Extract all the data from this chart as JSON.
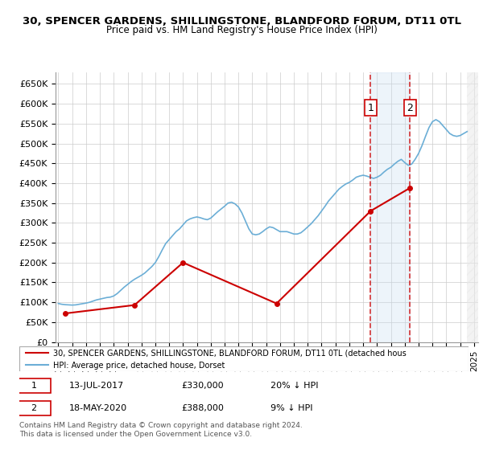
{
  "title1": "30, SPENCER GARDENS, SHILLINGSTONE, BLANDFORD FORUM, DT11 0TL",
  "title2": "Price paid vs. HM Land Registry's House Price Index (HPI)",
  "legend_line1": "30, SPENCER GARDENS, SHILLINGSTONE, BLANDFORD FORUM, DT11 0TL (detached hous",
  "legend_line2": "HPI: Average price, detached house, Dorset",
  "footnote": "Contains HM Land Registry data © Crown copyright and database right 2024.\nThis data is licensed under the Open Government Licence v3.0.",
  "annotation1": {
    "label": "1",
    "date": "13-JUL-2017",
    "price": 330000,
    "pct": "20% ↓ HPI"
  },
  "annotation2": {
    "label": "2",
    "date": "18-MAY-2020",
    "price": 388000,
    "pct": "9% ↓ HPI"
  },
  "ylim": [
    0,
    680000
  ],
  "yticks": [
    0,
    50000,
    100000,
    150000,
    200000,
    250000,
    300000,
    350000,
    400000,
    450000,
    500000,
    550000,
    600000,
    650000
  ],
  "hpi_color": "#6baed6",
  "price_color": "#cc0000",
  "ann_line_color": "#cc0000",
  "shade_color": "#c6dbef",
  "background_plot": "#ffffff",
  "grid_color": "#cccccc",
  "hpi_data": {
    "years": [
      1995.0,
      1995.25,
      1995.5,
      1995.75,
      1996.0,
      1996.25,
      1996.5,
      1996.75,
      1997.0,
      1997.25,
      1997.5,
      1997.75,
      1998.0,
      1998.25,
      1998.5,
      1998.75,
      1999.0,
      1999.25,
      1999.5,
      1999.75,
      2000.0,
      2000.25,
      2000.5,
      2000.75,
      2001.0,
      2001.25,
      2001.5,
      2001.75,
      2002.0,
      2002.25,
      2002.5,
      2002.75,
      2003.0,
      2003.25,
      2003.5,
      2003.75,
      2004.0,
      2004.25,
      2004.5,
      2004.75,
      2005.0,
      2005.25,
      2005.5,
      2005.75,
      2006.0,
      2006.25,
      2006.5,
      2006.75,
      2007.0,
      2007.25,
      2007.5,
      2007.75,
      2008.0,
      2008.25,
      2008.5,
      2008.75,
      2009.0,
      2009.25,
      2009.5,
      2009.75,
      2010.0,
      2010.25,
      2010.5,
      2010.75,
      2011.0,
      2011.25,
      2011.5,
      2011.75,
      2012.0,
      2012.25,
      2012.5,
      2012.75,
      2013.0,
      2013.25,
      2013.5,
      2013.75,
      2014.0,
      2014.25,
      2014.5,
      2014.75,
      2015.0,
      2015.25,
      2015.5,
      2015.75,
      2016.0,
      2016.25,
      2016.5,
      2016.75,
      2017.0,
      2017.25,
      2017.5,
      2017.75,
      2018.0,
      2018.25,
      2018.5,
      2018.75,
      2019.0,
      2019.25,
      2019.5,
      2019.75,
      2020.0,
      2020.25,
      2020.5,
      2020.75,
      2021.0,
      2021.25,
      2021.5,
      2021.75,
      2022.0,
      2022.25,
      2022.5,
      2022.75,
      2023.0,
      2023.25,
      2023.5,
      2023.75,
      2024.0,
      2024.25,
      2024.5
    ],
    "values": [
      97000,
      95000,
      94000,
      93500,
      93000,
      93500,
      95000,
      96500,
      98000,
      100000,
      103000,
      106000,
      108000,
      110000,
      112000,
      113000,
      116000,
      122000,
      130000,
      138000,
      145000,
      152000,
      158000,
      163000,
      168000,
      174000,
      182000,
      190000,
      200000,
      215000,
      232000,
      248000,
      258000,
      268000,
      278000,
      285000,
      295000,
      305000,
      310000,
      313000,
      315000,
      313000,
      310000,
      308000,
      312000,
      320000,
      328000,
      335000,
      342000,
      350000,
      352000,
      348000,
      340000,
      325000,
      305000,
      285000,
      272000,
      270000,
      272000,
      278000,
      285000,
      290000,
      288000,
      283000,
      278000,
      278000,
      278000,
      275000,
      272000,
      272000,
      275000,
      282000,
      290000,
      298000,
      308000,
      318000,
      330000,
      342000,
      355000,
      365000,
      375000,
      385000,
      392000,
      398000,
      402000,
      408000,
      415000,
      418000,
      420000,
      418000,
      415000,
      412000,
      415000,
      420000,
      428000,
      435000,
      440000,
      448000,
      455000,
      460000,
      452000,
      445000,
      448000,
      460000,
      475000,
      495000,
      518000,
      540000,
      555000,
      560000,
      555000,
      545000,
      535000,
      525000,
      520000,
      518000,
      520000,
      525000,
      530000
    ]
  },
  "price_data": {
    "years": [
      1995.5,
      2000.5,
      2004.0,
      2010.75,
      2017.54,
      2020.38
    ],
    "values": [
      72000,
      93000,
      200000,
      97000,
      330000,
      388000
    ]
  },
  "xmin": 1994.8,
  "xmax": 2025.3,
  "xticks": [
    1995,
    1996,
    1997,
    1998,
    1999,
    2000,
    2001,
    2002,
    2003,
    2004,
    2005,
    2006,
    2007,
    2008,
    2009,
    2010,
    2011,
    2012,
    2013,
    2014,
    2015,
    2016,
    2017,
    2018,
    2019,
    2020,
    2021,
    2022,
    2023,
    2024,
    2025
  ],
  "ann1_x": 2017.54,
  "ann2_x": 2020.38,
  "hatch_start": 2024.5
}
